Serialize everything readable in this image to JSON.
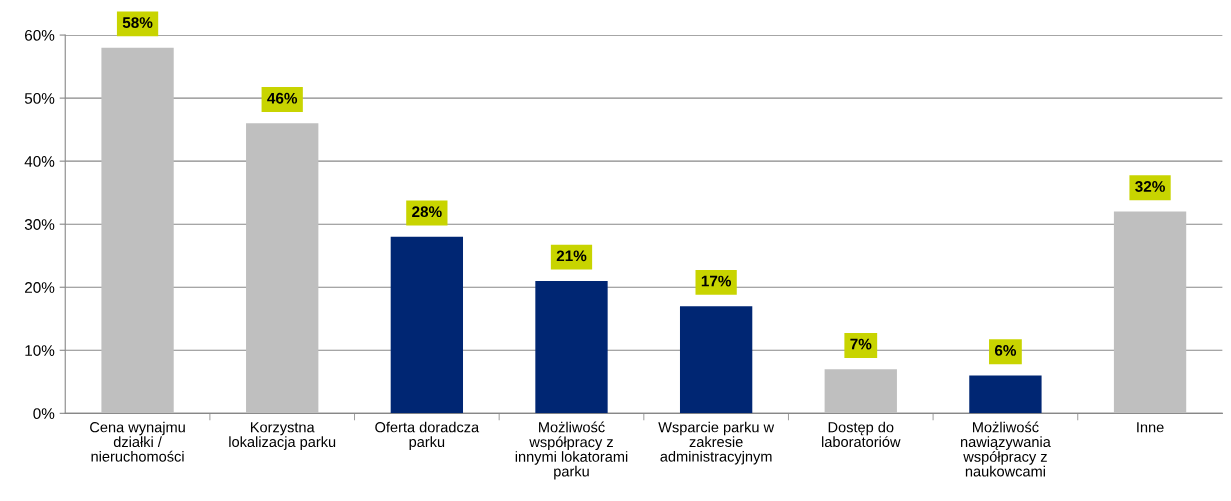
{
  "chart_data": {
    "type": "bar",
    "categories": [
      "Cena wynajmu\ndziałki /\nnieruchomości",
      "Korzystna\nlokalizacja parku",
      "Oferta doradcza\nparku",
      "Możliwość\nwspółpracy z\ninnymi lokatorami\nparku",
      "Wsparcie parku w\nzakresie\nadministracyjnym",
      "Dostęp do\nlaboratoriów",
      "Możliwość\nnawiązywania\nwspółpracy z\nnaukowcami",
      "Inne"
    ],
    "values": [
      58,
      46,
      28,
      21,
      17,
      7,
      6,
      32
    ],
    "colors": [
      "#bfbfbf",
      "#bfbfbf",
      "#002673",
      "#002673",
      "#002673",
      "#bfbfbf",
      "#002673",
      "#bfbfbf"
    ],
    "value_labels": [
      "58%",
      "46%",
      "28%",
      "21%",
      "17%",
      "7%",
      "6%",
      "32%"
    ],
    "ylim": [
      0,
      60
    ],
    "yticks": [
      {
        "value": 0,
        "label": "0%"
      },
      {
        "value": 10,
        "label": "10%"
      },
      {
        "value": 20,
        "label": "20%"
      },
      {
        "value": 30,
        "label": "30%"
      },
      {
        "value": 40,
        "label": "40%"
      },
      {
        "value": 50,
        "label": "50%"
      },
      {
        "value": 60,
        "label": "60%"
      }
    ],
    "grid": "y"
  }
}
